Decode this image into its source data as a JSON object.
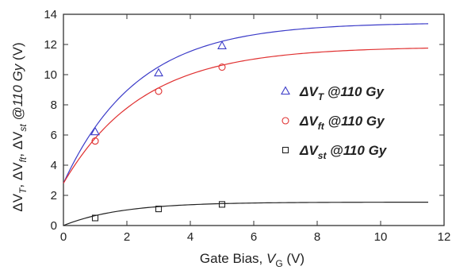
{
  "chart_data": {
    "type": "line",
    "xlabel": {
      "main": "Gate Bias, ",
      "var": "V",
      "sub": "G",
      "unit": "(V)"
    },
    "ylabel": {
      "delta": "ΔV",
      "sub_T": "T",
      "sub_ft": "ft",
      "sub_st": "st",
      "dose": "@110 Gy",
      "unit": "(V)"
    },
    "xlim": [
      0,
      12
    ],
    "ylim": [
      0,
      14
    ],
    "xticks": [
      0,
      2,
      4,
      6,
      8,
      10,
      12
    ],
    "yticks": [
      0,
      2,
      4,
      6,
      8,
      10,
      12,
      14
    ],
    "series": [
      {
        "name": "ΔV_T @110 Gy",
        "legend_var": "ΔV",
        "legend_sub": "T",
        "legend_dose": "@110 Gy",
        "marker": "triangle",
        "color": "#3b3bc8",
        "x": [
          1,
          3,
          5
        ],
        "y": [
          6.2,
          10.1,
          11.9
        ],
        "fit": {
          "a": 2.8,
          "b": 13.45,
          "k": 0.43,
          "xmax": 11.5
        }
      },
      {
        "name": "ΔV_ft @110 Gy",
        "legend_var": "ΔV",
        "legend_sub": "ft",
        "legend_dose": "@110 Gy",
        "marker": "circle",
        "color": "#e03030",
        "x": [
          1,
          3,
          5
        ],
        "y": [
          5.6,
          8.9,
          10.5
        ],
        "fit": {
          "a": 2.8,
          "b": 11.85,
          "k": 0.4,
          "xmax": 11.5
        }
      },
      {
        "name": "ΔV_st @110 Gy",
        "legend_var": "ΔV",
        "legend_sub": "st",
        "legend_dose": "@110 Gy",
        "marker": "square",
        "color": "#222222",
        "x": [
          1,
          3,
          5
        ],
        "y": [
          0.5,
          1.1,
          1.4
        ],
        "fit": {
          "a": 0,
          "b": 1.55,
          "k": 0.55,
          "xmax": 11.5
        }
      }
    ]
  }
}
